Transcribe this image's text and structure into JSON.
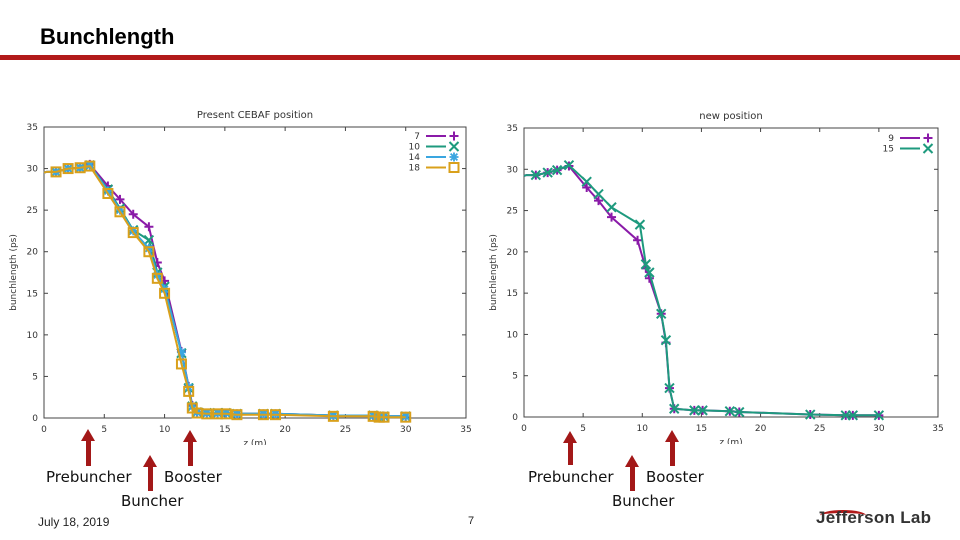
{
  "slide": {
    "title": "Bunchlength",
    "date": "July 18, 2019",
    "page_number": "7",
    "logo_text": "Jefferson Lab",
    "accent_color": "#b21a1a"
  },
  "annotations": {
    "left": {
      "prebuncher": "Prebuncher",
      "booster": "Booster",
      "buncher": "Buncher"
    },
    "right": {
      "prebuncher": "Prebuncher",
      "booster": "Booster",
      "buncher": "Buncher"
    }
  },
  "chart_data": [
    {
      "type": "line",
      "title": "Present CEBAF position",
      "xlabel": "z (m)",
      "ylabel": "bunchlength (ps)",
      "xlim": [
        0,
        35
      ],
      "ylim": [
        0,
        35
      ],
      "xticks": [
        0,
        5,
        10,
        15,
        20,
        25,
        30,
        35
      ],
      "yticks": [
        0,
        5,
        10,
        15,
        20,
        25,
        30,
        35
      ],
      "grid": false,
      "legend_position": "top-right",
      "series": [
        {
          "name": "7",
          "color": "#8a1aa8",
          "marker": "plus",
          "x": [
            0,
            0.2,
            1.0,
            2.0,
            3.0,
            3.8,
            5.3,
            6.3,
            7.4,
            8.7,
            9.4,
            10.0,
            11.4,
            12.0,
            12.3,
            12.7,
            13.5,
            14.4,
            15.1,
            16.0,
            18.2,
            19.2,
            24.0,
            27.3,
            27.8,
            28.2,
            30.0
          ],
          "y": [
            29.5,
            29.6,
            29.6,
            30.0,
            30.1,
            30.5,
            27.9,
            26.3,
            24.5,
            23.0,
            18.7,
            16.5,
            8.0,
            3.8,
            1.5,
            0.7,
            0.6,
            0.6,
            0.6,
            0.5,
            0.5,
            0.5,
            0.3,
            0.3,
            0.2,
            0.2,
            0.2
          ]
        },
        {
          "name": "10",
          "color": "#1e9a7e",
          "marker": "x",
          "x": [
            0,
            0.2,
            1.0,
            2.0,
            3.0,
            3.8,
            5.3,
            6.3,
            7.4,
            8.7,
            9.4,
            10.0,
            11.4,
            12.0,
            12.3,
            12.7,
            13.5,
            14.4,
            15.1,
            16.0,
            18.2,
            19.2,
            24.0,
            27.3,
            27.8,
            28.2,
            30.0
          ],
          "y": [
            29.5,
            29.6,
            29.6,
            30.0,
            30.1,
            30.4,
            27.5,
            25.2,
            22.6,
            21.4,
            17.5,
            15.8,
            7.8,
            3.6,
            1.4,
            0.7,
            0.6,
            0.6,
            0.6,
            0.5,
            0.5,
            0.5,
            0.3,
            0.3,
            0.2,
            0.2,
            0.2
          ]
        },
        {
          "name": "14",
          "color": "#3aa6e0",
          "marker": "star",
          "x": [
            0,
            0.2,
            1.0,
            2.0,
            3.0,
            3.8,
            5.3,
            6.3,
            7.4,
            8.7,
            9.4,
            10.0,
            11.4,
            12.0,
            12.3,
            12.7,
            13.5,
            14.4,
            15.1,
            16.0,
            18.2,
            19.2,
            24.0,
            27.3,
            27.8,
            28.2,
            30.0
          ],
          "y": [
            29.5,
            29.6,
            29.6,
            30.0,
            30.1,
            30.4,
            27.3,
            25.0,
            22.5,
            20.4,
            17.2,
            15.5,
            7.9,
            3.7,
            1.4,
            0.7,
            0.6,
            0.6,
            0.6,
            0.5,
            0.5,
            0.5,
            0.3,
            0.3,
            0.2,
            0.2,
            0.2
          ]
        },
        {
          "name": "18",
          "color": "#d9a01b",
          "marker": "square",
          "x": [
            0,
            0.2,
            1.0,
            2.0,
            3.0,
            3.8,
            5.3,
            6.3,
            7.4,
            8.7,
            9.4,
            10.0,
            11.4,
            12.0,
            12.3,
            12.7,
            13.5,
            14.4,
            15.1,
            16.0,
            18.2,
            19.2,
            24.0,
            27.3,
            27.8,
            28.2,
            30.0
          ],
          "y": [
            29.5,
            29.6,
            29.6,
            30.0,
            30.1,
            30.3,
            27.0,
            24.8,
            22.3,
            20.0,
            16.8,
            15.0,
            6.5,
            3.2,
            1.2,
            0.6,
            0.5,
            0.5,
            0.5,
            0.4,
            0.4,
            0.4,
            0.2,
            0.2,
            0.1,
            0.1,
            0.1
          ]
        }
      ]
    },
    {
      "type": "line",
      "title": "new position",
      "xlabel": "z (m)",
      "ylabel": "bunchlength (ps)",
      "xlim": [
        0,
        35
      ],
      "ylim": [
        0,
        35
      ],
      "xticks": [
        0,
        5,
        10,
        15,
        20,
        25,
        30,
        35
      ],
      "yticks": [
        0,
        5,
        10,
        15,
        20,
        25,
        30,
        35
      ],
      "grid": false,
      "legend_position": "top-right",
      "series": [
        {
          "name": "9",
          "color": "#8a1aa8",
          "marker": "plus",
          "x": [
            0,
            0.2,
            1.0,
            2.0,
            2.8,
            3.8,
            5.3,
            6.3,
            7.4,
            9.6,
            10.3,
            10.6,
            11.6,
            12.0,
            12.3,
            12.7,
            14.4,
            15.1,
            17.4,
            18.2,
            24.2,
            27.2,
            27.8,
            30.0
          ],
          "y": [
            29.2,
            29.3,
            29.3,
            29.6,
            29.9,
            30.4,
            27.8,
            26.2,
            24.2,
            21.4,
            18.0,
            16.8,
            12.5,
            9.0,
            3.5,
            1.0,
            0.8,
            0.8,
            0.7,
            0.6,
            0.3,
            0.2,
            0.2,
            0.2
          ]
        },
        {
          "name": "15",
          "color": "#1e9a7e",
          "marker": "x",
          "x": [
            0,
            0.2,
            1.0,
            2.0,
            2.8,
            3.8,
            5.3,
            6.3,
            7.4,
            9.8,
            10.3,
            10.6,
            11.6,
            12.0,
            12.3,
            12.7,
            14.4,
            15.1,
            17.4,
            18.2,
            24.2,
            27.2,
            27.8,
            30.0
          ],
          "y": [
            29.2,
            29.3,
            29.3,
            29.6,
            29.9,
            30.5,
            28.5,
            27.0,
            25.4,
            23.3,
            18.5,
            17.5,
            12.5,
            9.3,
            3.5,
            1.0,
            0.8,
            0.8,
            0.7,
            0.6,
            0.3,
            0.2,
            0.2,
            0.2
          ]
        }
      ]
    }
  ]
}
